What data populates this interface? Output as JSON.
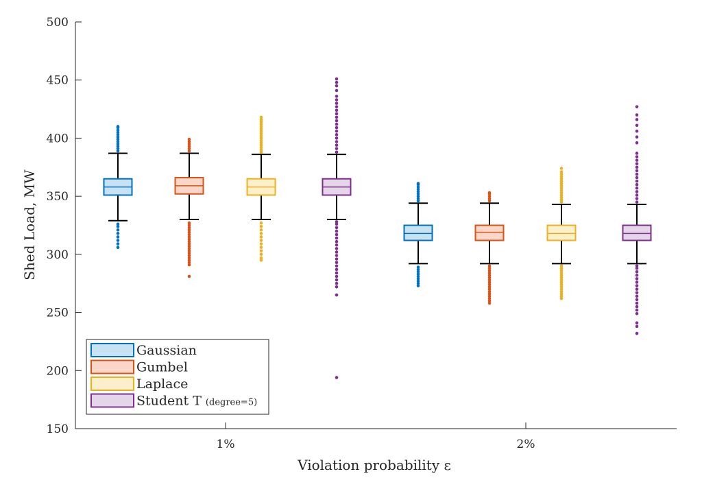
{
  "chart_data": {
    "type": "boxplot",
    "xlabel": "Violation probability ε",
    "ylabel": "Shed Load, MW",
    "ylim": [
      150,
      500
    ],
    "yticks": [
      150,
      200,
      250,
      300,
      350,
      400,
      450,
      500
    ],
    "categories": [
      "1%",
      "2%"
    ],
    "legend": {
      "position": "bottom-left"
    },
    "series": [
      {
        "name": "Gaussian",
        "color": "#0072BD",
        "fill": "#C9E2F3",
        "boxes": [
          {
            "category": "1%",
            "whisker_low": 329,
            "q1": 351,
            "median": 358,
            "q3": 365,
            "whisker_high": 387,
            "outliers": [
              306,
              309,
              312,
              315,
              318,
              321,
              324,
              326,
              389,
              391,
              393,
              395,
              397,
              399,
              401,
              403,
              405,
              407,
              409,
              410
            ]
          },
          {
            "category": "2%",
            "whisker_low": 292,
            "q1": 312,
            "median": 318,
            "q3": 325,
            "whisker_high": 344,
            "outliers": [
              273,
              275,
              277,
              279,
              281,
              283,
              285,
              287,
              289,
              346,
              348,
              350,
              352,
              354,
              356,
              358,
              360,
              361
            ]
          }
        ]
      },
      {
        "name": "Gumbel",
        "color": "#D95319",
        "fill": "#F9D7C8",
        "boxes": [
          {
            "category": "1%",
            "whisker_low": 330,
            "q1": 352,
            "median": 359,
            "q3": 366,
            "whisker_high": 387,
            "outliers": [
              281,
              291,
              293,
              295,
              297,
              299,
              301,
              303,
              305,
              307,
              309,
              311,
              313,
              315,
              317,
              319,
              321,
              323,
              325,
              327,
              389,
              391,
              393,
              395,
              397,
              399
            ]
          },
          {
            "category": "2%",
            "whisker_low": 292,
            "q1": 312,
            "median": 319,
            "q3": 325,
            "whisker_high": 344,
            "outliers": [
              258,
              260,
              262,
              264,
              266,
              268,
              270,
              272,
              274,
              276,
              278,
              280,
              282,
              284,
              286,
              288,
              290,
              346,
              348,
              350,
              352,
              353
            ]
          }
        ]
      },
      {
        "name": "Laplace",
        "color": "#EDB120",
        "fill": "#FCF0CC",
        "boxes": [
          {
            "category": "1%",
            "whisker_low": 330,
            "q1": 351,
            "median": 358,
            "q3": 365,
            "whisker_high": 386,
            "outliers": [
              295,
              297,
              300,
              303,
              306,
              309,
              312,
              315,
              318,
              321,
              324,
              327,
              388,
              390,
              392,
              394,
              396,
              398,
              400,
              402,
              404,
              406,
              408,
              410,
              412,
              414,
              416,
              418
            ]
          },
          {
            "category": "2%",
            "whisker_low": 292,
            "q1": 312,
            "median": 318,
            "q3": 325,
            "whisker_high": 343,
            "outliers": [
              262,
              264,
              266,
              268,
              270,
              272,
              274,
              276,
              278,
              280,
              282,
              284,
              286,
              288,
              290,
              345,
              347,
              349,
              351,
              353,
              355,
              357,
              359,
              361,
              363,
              365,
              367,
              369,
              371,
              374
            ]
          }
        ]
      },
      {
        "name": "Student T (degree=5)",
        "color": "#7E2F8E",
        "fill": "#E5D5E8",
        "boxes": [
          {
            "category": "1%",
            "whisker_low": 330,
            "q1": 351,
            "median": 358,
            "q3": 365,
            "whisker_high": 386,
            "outliers": [
              194,
              265,
              272,
              275,
              278,
              281,
              284,
              287,
              290,
              293,
              296,
              299,
              302,
              305,
              308,
              311,
              314,
              317,
              320,
              323,
              326,
              328,
              388,
              391,
              394,
              397,
              400,
              403,
              406,
              409,
              412,
              415,
              418,
              421,
              424,
              427,
              430,
              433,
              436,
              441,
              445,
              448,
              451
            ]
          },
          {
            "category": "2%",
            "whisker_low": 292,
            "q1": 312,
            "median": 318,
            "q3": 325,
            "whisker_high": 343,
            "outliers": [
              232,
              238,
              241,
              249,
              252,
              255,
              258,
              261,
              264,
              267,
              270,
              273,
              276,
              279,
              282,
              285,
              288,
              290,
              345,
              348,
              351,
              354,
              357,
              360,
              363,
              366,
              369,
              372,
              375,
              378,
              381,
              384,
              387,
              396,
              401,
              406,
              411,
              416,
              420,
              427
            ]
          }
        ]
      }
    ]
  }
}
